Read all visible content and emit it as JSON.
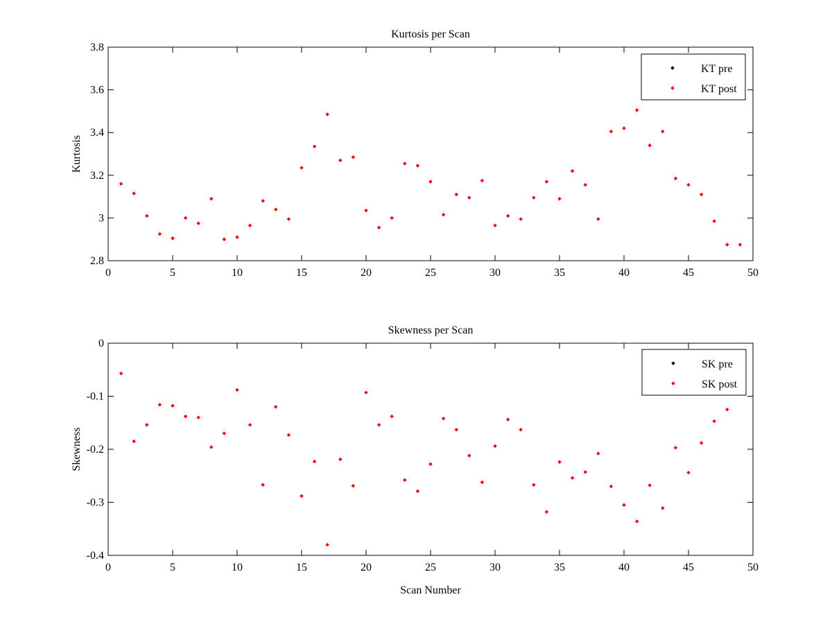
{
  "chart_data": [
    {
      "type": "scatter",
      "title": "Kurtosis per Scan",
      "xlabel": "",
      "ylabel": "Kurtosis",
      "xlim": [
        0,
        50
      ],
      "ylim": [
        2.8,
        3.8
      ],
      "xticks": [
        "0",
        "5",
        "10",
        "15",
        "20",
        "25",
        "30",
        "35",
        "40",
        "45",
        "50"
      ],
      "yticks": [
        "2.8",
        "3",
        "3.2",
        "3.4",
        "3.6",
        "3.8"
      ],
      "legend_position": "top-right",
      "series": [
        {
          "name": "KT pre",
          "color": "#000000",
          "x": [],
          "y": []
        },
        {
          "name": "KT post",
          "color": "#ff0000",
          "x": [
            1,
            2,
            3,
            4,
            5,
            6,
            7,
            8,
            9,
            10,
            11,
            12,
            13,
            14,
            15,
            16,
            17,
            18,
            19,
            20,
            21,
            22,
            23,
            24,
            25,
            26,
            27,
            28,
            29,
            30,
            31,
            32,
            33,
            34,
            35,
            36,
            37,
            38,
            39,
            40,
            41,
            42,
            43,
            44,
            45,
            46,
            47,
            48,
            49
          ],
          "y": [
            3.16,
            3.115,
            3.01,
            2.925,
            2.905,
            3.0,
            2.975,
            3.09,
            2.9,
            2.91,
            2.965,
            3.08,
            3.04,
            2.995,
            3.235,
            3.335,
            3.485,
            3.27,
            3.285,
            3.035,
            2.955,
            3.0,
            3.255,
            3.245,
            3.17,
            3.015,
            3.11,
            3.095,
            3.175,
            2.965,
            3.01,
            2.995,
            3.095,
            3.17,
            3.09,
            3.22,
            3.155,
            2.995,
            3.405,
            3.42,
            3.505,
            3.34,
            3.405,
            3.185,
            3.155,
            3.11,
            2.985,
            2.875,
            2.875
          ]
        }
      ]
    },
    {
      "type": "scatter",
      "title": "Skewness per Scan",
      "xlabel": "Scan Number",
      "ylabel": "Skewness",
      "xlim": [
        0,
        50
      ],
      "ylim": [
        -0.4,
        0
      ],
      "xticks": [
        "0",
        "5",
        "10",
        "15",
        "20",
        "25",
        "30",
        "35",
        "40",
        "45",
        "50"
      ],
      "yticks": [
        "-0.4",
        "-0.3",
        "-0.2",
        "-0.1",
        "0"
      ],
      "legend_position": "top-right",
      "series": [
        {
          "name": "SK pre",
          "color": "#000000",
          "x": [],
          "y": []
        },
        {
          "name": "SK post",
          "color": "#ff0000",
          "x": [
            1,
            2,
            3,
            4,
            5,
            6,
            7,
            8,
            9,
            10,
            11,
            12,
            13,
            14,
            15,
            16,
            17,
            18,
            19,
            20,
            21,
            22,
            23,
            24,
            25,
            26,
            27,
            28,
            29,
            30,
            31,
            32,
            33,
            34,
            35,
            36,
            37,
            38,
            39,
            40,
            41,
            42,
            43,
            44,
            45,
            46,
            47,
            48
          ],
          "y": [
            -0.057,
            -0.185,
            -0.154,
            -0.116,
            -0.118,
            -0.138,
            -0.14,
            -0.196,
            -0.17,
            -0.088,
            -0.154,
            -0.267,
            -0.12,
            -0.173,
            -0.288,
            -0.223,
            -0.38,
            -0.219,
            -0.269,
            -0.093,
            -0.154,
            -0.138,
            -0.258,
            -0.279,
            -0.228,
            -0.142,
            -0.163,
            -0.212,
            -0.262,
            -0.194,
            -0.144,
            -0.163,
            -0.267,
            -0.318,
            -0.224,
            -0.254,
            -0.243,
            -0.208,
            -0.27,
            -0.305,
            -0.336,
            -0.268,
            -0.311,
            -0.197,
            -0.244,
            -0.188,
            -0.147,
            -0.125
          ]
        }
      ]
    }
  ]
}
